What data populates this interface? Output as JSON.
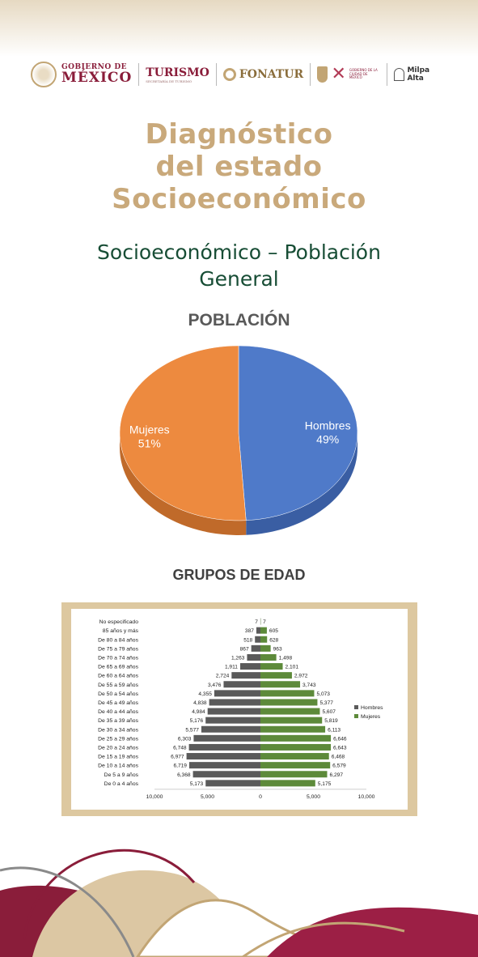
{
  "header": {
    "gobierno_small": "GOBIERNO DE",
    "gobierno_big": "MÉXICO",
    "turismo": "TURISMO",
    "turismo_sub": "SECRETARÍA DE TURISMO",
    "fonatur": "FONATUR",
    "cdmx_line1": "GOBIERNO DE LA",
    "cdmx_line2": "CIUDAD DE MÉXICO",
    "milpa_alta": "Milpa Alta"
  },
  "title_lines": [
    "Diagnóstico",
    "del estado",
    "Socioeconómico"
  ],
  "subtitle_lines": [
    "Socioeconómico – Población",
    "General"
  ],
  "colors": {
    "title": "#c9a97b",
    "subtitle": "#174d35",
    "hombres_pie": "#4f7ac9",
    "mujeres_pie": "#ed8a3f",
    "hombres_bar": "#5a5a5a",
    "mujeres_bar": "#5d8a3a",
    "frame": "#ddc8a0",
    "wine": "#8a1d3a",
    "gold": "#c2a574"
  },
  "chart_data": [
    {
      "type": "pie",
      "title": "POBLACIÓN",
      "slices": [
        {
          "name": "Hombres",
          "value": 49,
          "label": "49%"
        },
        {
          "name": "Mujeres",
          "value": 51,
          "label": "51%"
        }
      ]
    },
    {
      "type": "bar",
      "title": "GRUPOS DE EDAD",
      "orientation": "horizontal-pyramid",
      "categories": [
        "No especificado",
        "85 años y más",
        "De 80 a 84 años",
        "De 75 a 79 años",
        "De 70 a 74 años",
        "De 65 a 69 años",
        "De 60 a 64 años",
        "De 55 a 59 años",
        "De 50 a 54 años",
        "De 45 a 49 años",
        "De 40 a 44 años",
        "De 35 a 39 años",
        "De 30 a 34 años",
        "De 25 a 29 años",
        "De 20 a 24 años",
        "De 15 a 19 años",
        "De 10 a 14 años",
        "De 5 a 9 años",
        "De 0 a 4 años"
      ],
      "series": [
        {
          "name": "Hombres",
          "values": [
            7,
            387,
            518,
            867,
            1263,
            1911,
            2724,
            3476,
            4355,
            4838,
            4984,
            5176,
            5577,
            6303,
            6748,
            6977,
            6719,
            6368,
            5173
          ],
          "labels": [
            "7",
            "387",
            "518",
            "867",
            "1,263",
            "1,911",
            "2,724",
            "3,476",
            "4,355",
            "4,838",
            "4,984",
            "5,176",
            "5,577",
            "6,303",
            "6,748",
            "6,977",
            "6,719",
            "6,368",
            "5,173"
          ]
        },
        {
          "name": "Mujeres",
          "values": [
            7,
            605,
            628,
            963,
            1498,
            2101,
            2972,
            3743,
            5073,
            5377,
            5607,
            5819,
            6113,
            6646,
            6643,
            6468,
            6579,
            6297,
            5175
          ],
          "labels": [
            "7",
            "605",
            "628",
            "963",
            "1,498",
            "2,101",
            "2,972",
            "3,743",
            "5,073",
            "5,377",
            "5,607",
            "5,819",
            "6,113",
            "6,646",
            "6,643",
            "6,468",
            "6,579",
            "6,297",
            "5,175"
          ]
        }
      ],
      "xlim": [
        -10000,
        10000
      ],
      "xticks": [
        -10000,
        -5000,
        0,
        5000,
        10000
      ],
      "xtick_labels": [
        "10,000",
        "5,000",
        "0",
        "5,000",
        "10,000"
      ],
      "legend": [
        "Hombres",
        "Mujeres"
      ],
      "legend_position": "right"
    }
  ]
}
